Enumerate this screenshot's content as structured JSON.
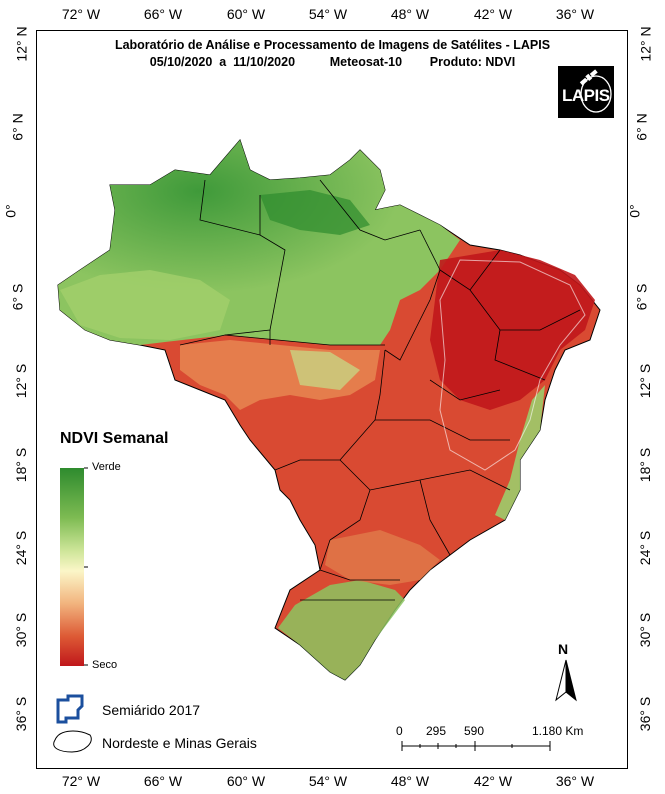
{
  "title": {
    "line1": "Laboratório de Análise e Processamento de Imagens de Satélites - LAPIS",
    "line2": "05/10/2020  a  11/10/2020          Meteosat-10        Produto: NDVI"
  },
  "logo_text": "LAPIS",
  "axes": {
    "longitude_top": [
      "72° W",
      "66° W",
      "60° W",
      "54° W",
      "48° W",
      "42° W",
      "36° W"
    ],
    "longitude_bottom": [
      "72° W",
      "66° W",
      "60° W",
      "54° W",
      "48° W",
      "42° W",
      "36° W"
    ],
    "latitude_left": [
      "12° N",
      "6° N",
      "0°",
      "6° S",
      "12° S",
      "18° S",
      "24° S",
      "30° S",
      "36° S"
    ],
    "latitude_right": [
      "12° N",
      "6° N",
      "0°",
      "6° S",
      "12° S",
      "18° S",
      "24° S",
      "30° S",
      "36° S"
    ]
  },
  "legend": {
    "title": "NDVI Semanal",
    "top_label": "Verde",
    "bottom_label": "Seco",
    "colors": [
      "#2e8b2e",
      "#7dbb52",
      "#cfe69a",
      "#fbf6c8",
      "#f2b680",
      "#dd5a35",
      "#c0171b"
    ],
    "semiarido": "Semiárido 2017",
    "nordeste": "Nordeste e Minas Gerais"
  },
  "scale_bar": {
    "labels": [
      "0",
      "295",
      "590",
      "1.180 Km"
    ]
  },
  "north_arrow": "N"
}
